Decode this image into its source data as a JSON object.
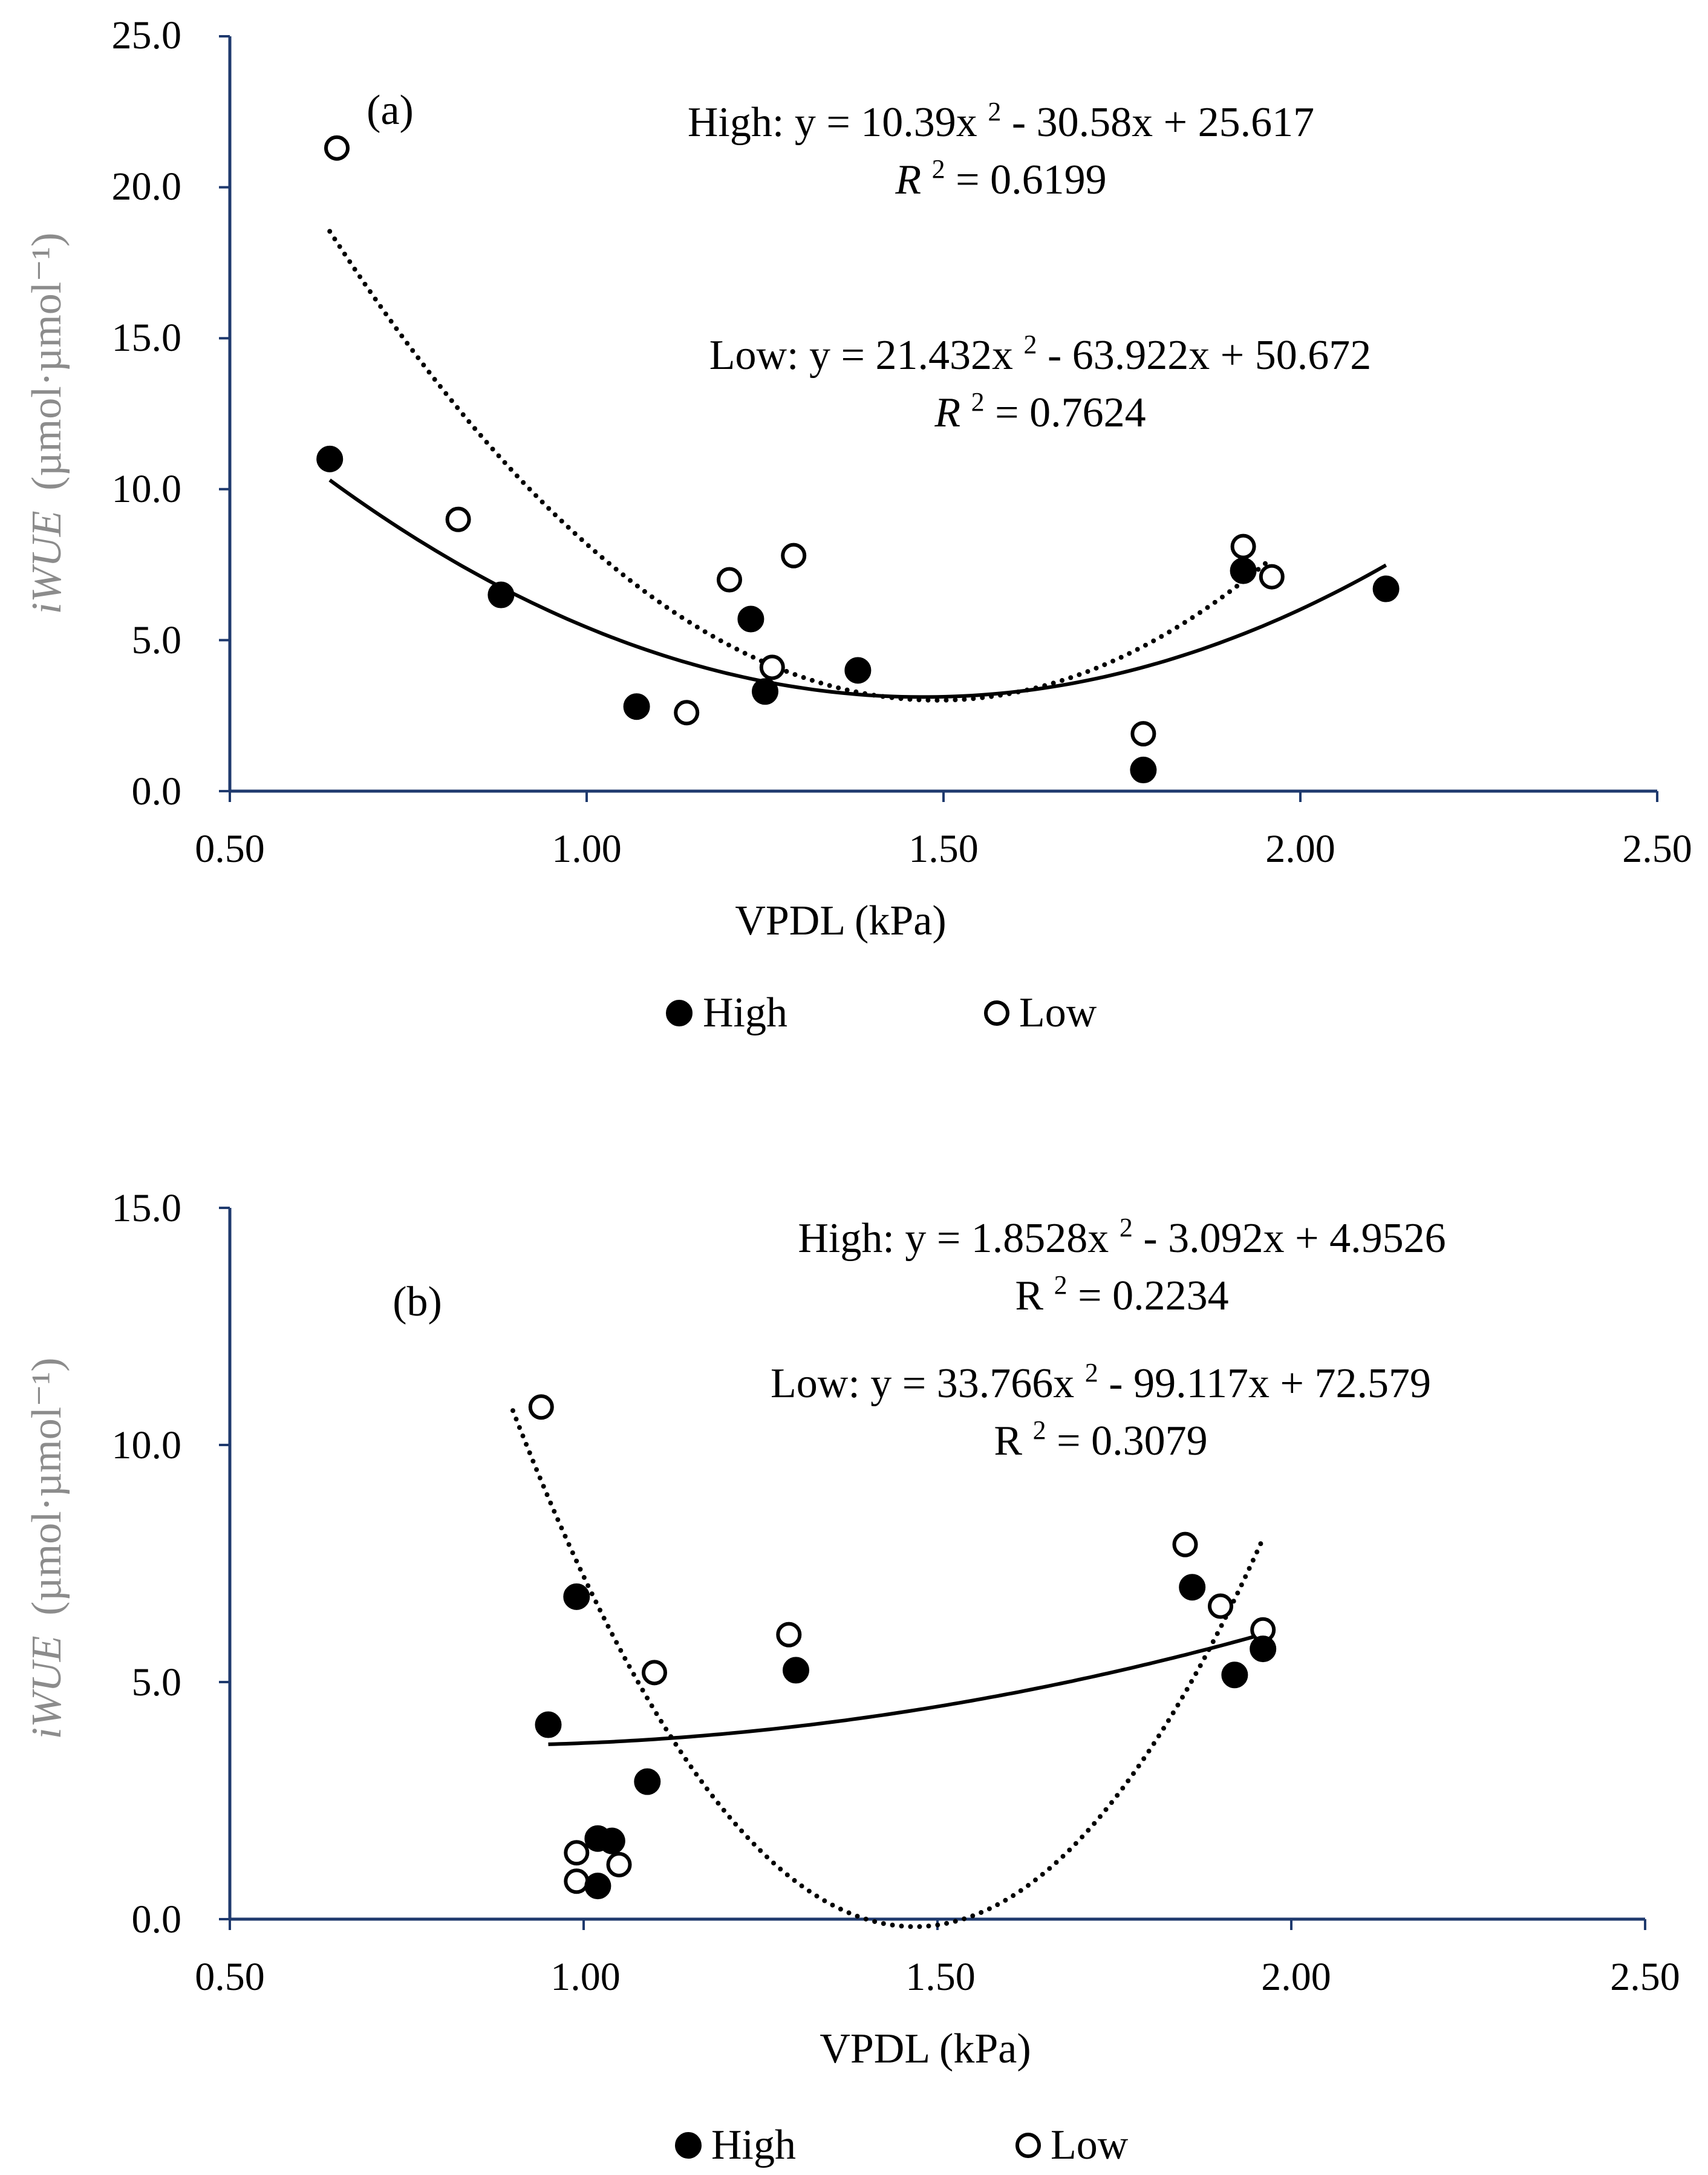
{
  "figure": {
    "legend": {
      "high_label": "High",
      "low_label": "Low"
    }
  },
  "chart_data": [
    {
      "type": "scatter",
      "panel_label": "(a)",
      "xlabel": "VPDL (kPa)",
      "ylabel_italic": "iWUE",
      "ylabel_units": "(µmol·µmol⁻¹)",
      "xlim": [
        0.5,
        2.5
      ],
      "ylim": [
        0,
        25
      ],
      "xticks": [
        0.5,
        1.0,
        1.5,
        2.0,
        2.5
      ],
      "xtick_labels": [
        "0.50",
        "1.00",
        "1.50",
        "2.00",
        "2.50"
      ],
      "yticks": [
        0,
        5,
        10,
        15,
        20,
        25
      ],
      "ytick_labels": [
        "0.0",
        "5.0",
        "10.0",
        "15.0",
        "20.0",
        "25.0"
      ],
      "legend_position": "bottom-center",
      "series": [
        {
          "name": "High",
          "marker": "filled-circle",
          "points": [
            [
              0.64,
              11.0
            ],
            [
              0.88,
              6.5
            ],
            [
              1.07,
              2.8
            ],
            [
              1.23,
              5.7
            ],
            [
              1.25,
              3.3
            ],
            [
              1.38,
              4.0
            ],
            [
              1.78,
              0.7
            ],
            [
              1.92,
              7.3
            ],
            [
              2.12,
              6.7
            ]
          ],
          "trend": {
            "type": "poly2",
            "coefficients": [
              10.39,
              -30.58,
              25.617
            ],
            "x_range": [
              0.64,
              2.12
            ],
            "line_style": "solid"
          },
          "equation_text": {
            "prefix": "High: y = 10.39x",
            "sup": "2",
            "suffix": " - 30.58x + 25.617"
          },
          "r2_text": {
            "r": "R",
            "sup": "2",
            "value": " = 0.6199",
            "italic_r": true
          }
        },
        {
          "name": "Low",
          "marker": "open-circle",
          "points": [
            [
              0.65,
              21.3
            ],
            [
              0.82,
              9.0
            ],
            [
              1.14,
              2.6
            ],
            [
              1.2,
              7.0
            ],
            [
              1.26,
              4.1
            ],
            [
              1.29,
              7.8
            ],
            [
              1.78,
              1.9
            ],
            [
              1.92,
              8.1
            ],
            [
              1.96,
              7.1
            ]
          ],
          "trend": {
            "type": "poly2",
            "coefficients": [
              21.432,
              -63.922,
              50.672
            ],
            "x_range": [
              0.64,
              1.96
            ],
            "line_style": "dotted"
          },
          "equation_text": {
            "prefix": "Low: y = 21.432x",
            "sup": "2",
            "suffix": " - 63.922x + 50.672"
          },
          "r2_text": {
            "r": "R",
            "sup": "2",
            "value": " = 0.7624",
            "italic_r": true
          }
        }
      ]
    },
    {
      "type": "scatter",
      "panel_label": "(b)",
      "xlabel": "VPDL (kPa)",
      "ylabel_italic": "iWUE",
      "ylabel_units": "(µmol·µmol⁻¹)",
      "xlim": [
        0.5,
        2.5
      ],
      "ylim": [
        0,
        15
      ],
      "xticks": [
        0.5,
        1.0,
        1.5,
        2.0,
        2.5
      ],
      "xtick_labels": [
        "0.50",
        "1.00",
        "1.50",
        "2.00",
        "2.50"
      ],
      "yticks": [
        0,
        5,
        10,
        15
      ],
      "ytick_labels": [
        "0.0",
        "5.0",
        "10.0",
        "15.0"
      ],
      "legend_position": "bottom-center",
      "series": [
        {
          "name": "High",
          "marker": "filled-circle",
          "points": [
            [
              0.95,
              4.1
            ],
            [
              0.99,
              6.8
            ],
            [
              1.02,
              1.7
            ],
            [
              1.02,
              0.7
            ],
            [
              1.04,
              1.65
            ],
            [
              1.09,
              2.9
            ],
            [
              1.3,
              5.25
            ],
            [
              1.86,
              7.0
            ],
            [
              1.92,
              5.15
            ],
            [
              1.96,
              5.7
            ]
          ],
          "trend": {
            "type": "poly2",
            "coefficients": [
              1.8528,
              -3.092,
              4.9526
            ],
            "x_range": [
              0.95,
              1.96
            ],
            "line_style": "solid"
          },
          "equation_text": {
            "prefix": "High: y = 1.8528x",
            "sup": "2",
            "suffix": " - 3.092x + 4.9526"
          },
          "r2_text": {
            "r": "R",
            "sup": "2",
            "value": " = 0.2234",
            "italic_r": false
          }
        },
        {
          "name": "Low",
          "marker": "open-circle",
          "points": [
            [
              0.94,
              10.8
            ],
            [
              0.99,
              1.4
            ],
            [
              0.99,
              0.8
            ],
            [
              1.05,
              1.15
            ],
            [
              1.1,
              5.2
            ],
            [
              1.29,
              6.0
            ],
            [
              1.85,
              7.9
            ],
            [
              1.9,
              6.6
            ],
            [
              1.96,
              6.1
            ]
          ],
          "trend": {
            "type": "poly2",
            "coefficients": [
              33.766,
              -99.117,
              72.579
            ],
            "x_range": [
              0.9,
              1.96
            ],
            "line_style": "dotted"
          },
          "equation_text": {
            "prefix": "Low: y = 33.766x",
            "sup": "2",
            "suffix": " - 99.117x + 72.579"
          },
          "r2_text": {
            "r": "R",
            "sup": "2",
            "value": " = 0.3079",
            "italic_r": false
          }
        }
      ]
    }
  ]
}
